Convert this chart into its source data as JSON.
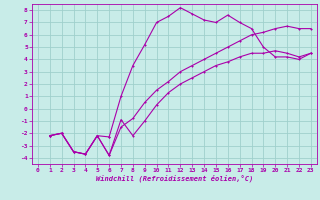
{
  "xlabel": "Windchill (Refroidissement éolien,°C)",
  "bg_color": "#c8ece8",
  "line_color": "#aa00aa",
  "grid_color": "#a0d0cc",
  "xlim": [
    -0.5,
    23.5
  ],
  "ylim": [
    -4.5,
    8.5
  ],
  "xticks": [
    0,
    1,
    2,
    3,
    4,
    5,
    6,
    7,
    8,
    9,
    10,
    11,
    12,
    13,
    14,
    15,
    16,
    17,
    18,
    19,
    20,
    21,
    22,
    23
  ],
  "yticks": [
    -4,
    -3,
    -2,
    -1,
    0,
    1,
    2,
    3,
    4,
    5,
    6,
    7,
    8
  ],
  "line1_x": [
    1,
    2,
    3,
    4,
    5,
    6,
    6,
    7,
    8,
    9,
    10,
    11,
    12,
    13,
    14,
    15,
    16,
    17,
    18,
    19,
    20,
    21,
    22,
    23
  ],
  "line1_y": [
    -2.2,
    -2.0,
    -3.5,
    -3.7,
    -2.2,
    -2.3,
    -2.3,
    1.0,
    3.5,
    5.2,
    7.0,
    7.5,
    8.2,
    7.7,
    7.2,
    7.0,
    7.6,
    7.0,
    6.5,
    5.0,
    4.2,
    4.2,
    4.0,
    4.5
  ],
  "line2_x": [
    1,
    2,
    3,
    4,
    5,
    6,
    7,
    8,
    9,
    10,
    11,
    12,
    13,
    14,
    15,
    16,
    17,
    18,
    19,
    20,
    21,
    22,
    23
  ],
  "line2_y": [
    -2.2,
    -2.0,
    -3.5,
    -3.7,
    -2.2,
    -3.8,
    -0.9,
    -2.2,
    -1.0,
    0.3,
    1.3,
    2.0,
    2.5,
    3.0,
    3.5,
    3.8,
    4.2,
    4.5,
    4.5,
    4.7,
    4.5,
    4.2,
    4.5
  ],
  "line3_x": [
    1,
    2,
    3,
    4,
    5,
    6,
    7,
    8,
    9,
    10,
    11,
    12,
    13,
    14,
    15,
    16,
    17,
    18,
    19,
    20,
    21,
    22,
    23
  ],
  "line3_y": [
    -2.2,
    -2.0,
    -3.5,
    -3.7,
    -2.2,
    -3.8,
    -1.5,
    -0.8,
    0.5,
    1.5,
    2.2,
    3.0,
    3.5,
    4.0,
    4.5,
    5.0,
    5.5,
    6.0,
    6.2,
    6.5,
    6.7,
    6.5,
    6.5
  ]
}
